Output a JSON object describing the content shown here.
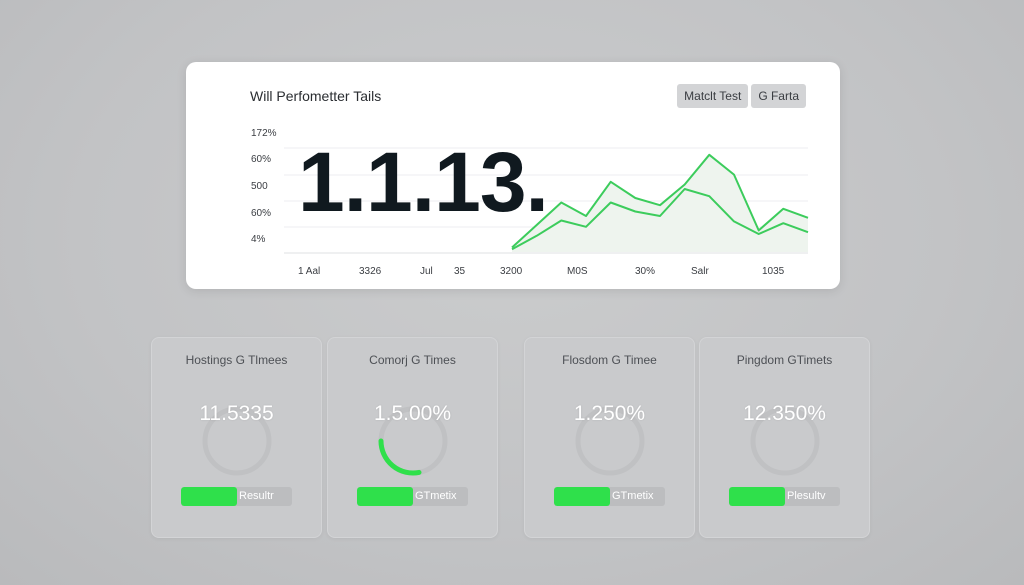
{
  "chart_card": {
    "title": "Will Perfometter Tails",
    "buttons": [
      "Matclt Test",
      "G Farta"
    ],
    "big_number": "1.1.13."
  },
  "chart_data": {
    "type": "line",
    "y_tick_labels": [
      "172%",
      "60%",
      "500",
      "60%",
      "4%"
    ],
    "x_tick_labels": [
      "1 Aal",
      "3326",
      "Jul",
      "35",
      "3200",
      "M0S",
      "30%",
      "Salr",
      "1035"
    ],
    "series": [
      {
        "color": "#3ccc5c",
        "points": [
          [
            0,
            5
          ],
          [
            1,
            30
          ],
          [
            2,
            55
          ],
          [
            3,
            40
          ],
          [
            4,
            78
          ],
          [
            5,
            60
          ],
          [
            6,
            52
          ],
          [
            7,
            75
          ],
          [
            8,
            108
          ],
          [
            9,
            86
          ],
          [
            10,
            24
          ],
          [
            11,
            48
          ],
          [
            12,
            38
          ]
        ],
        "fill": true
      },
      {
        "color": "#3ccc5c",
        "points": [
          [
            0,
            3
          ],
          [
            1,
            18
          ],
          [
            2,
            35
          ],
          [
            3,
            28
          ],
          [
            4,
            55
          ],
          [
            5,
            45
          ],
          [
            6,
            40
          ],
          [
            7,
            70
          ],
          [
            8,
            62
          ],
          [
            9,
            34
          ],
          [
            10,
            20
          ],
          [
            11,
            32
          ],
          [
            12,
            22
          ]
        ],
        "fill": false
      }
    ],
    "ylim": [
      0,
      120
    ],
    "xlim": [
      0,
      12
    ]
  },
  "colors": {
    "accent": "#2fe04b",
    "line": "#3ccc5c",
    "background": "#c4c5c7"
  },
  "metrics": [
    {
      "title": "Hostings G Tlmees",
      "value": "11.5335",
      "gauge_fraction": 0.0,
      "bar_fill": 0.5,
      "bar_label": "Resultr"
    },
    {
      "title": "Comorj G Times",
      "value": "1.5.00%",
      "gauge_fraction": 0.28,
      "bar_fill": 0.5,
      "bar_label": "GTmetix"
    },
    {
      "title": "Flosdom G Timee",
      "value": "1.250%",
      "gauge_fraction": 0.0,
      "bar_fill": 0.5,
      "bar_label": "GTmetix"
    },
    {
      "title": "Pingdom GTimets",
      "value": "12.350%",
      "gauge_fraction": 0.0,
      "bar_fill": 0.5,
      "bar_label": "Plesultv"
    }
  ]
}
